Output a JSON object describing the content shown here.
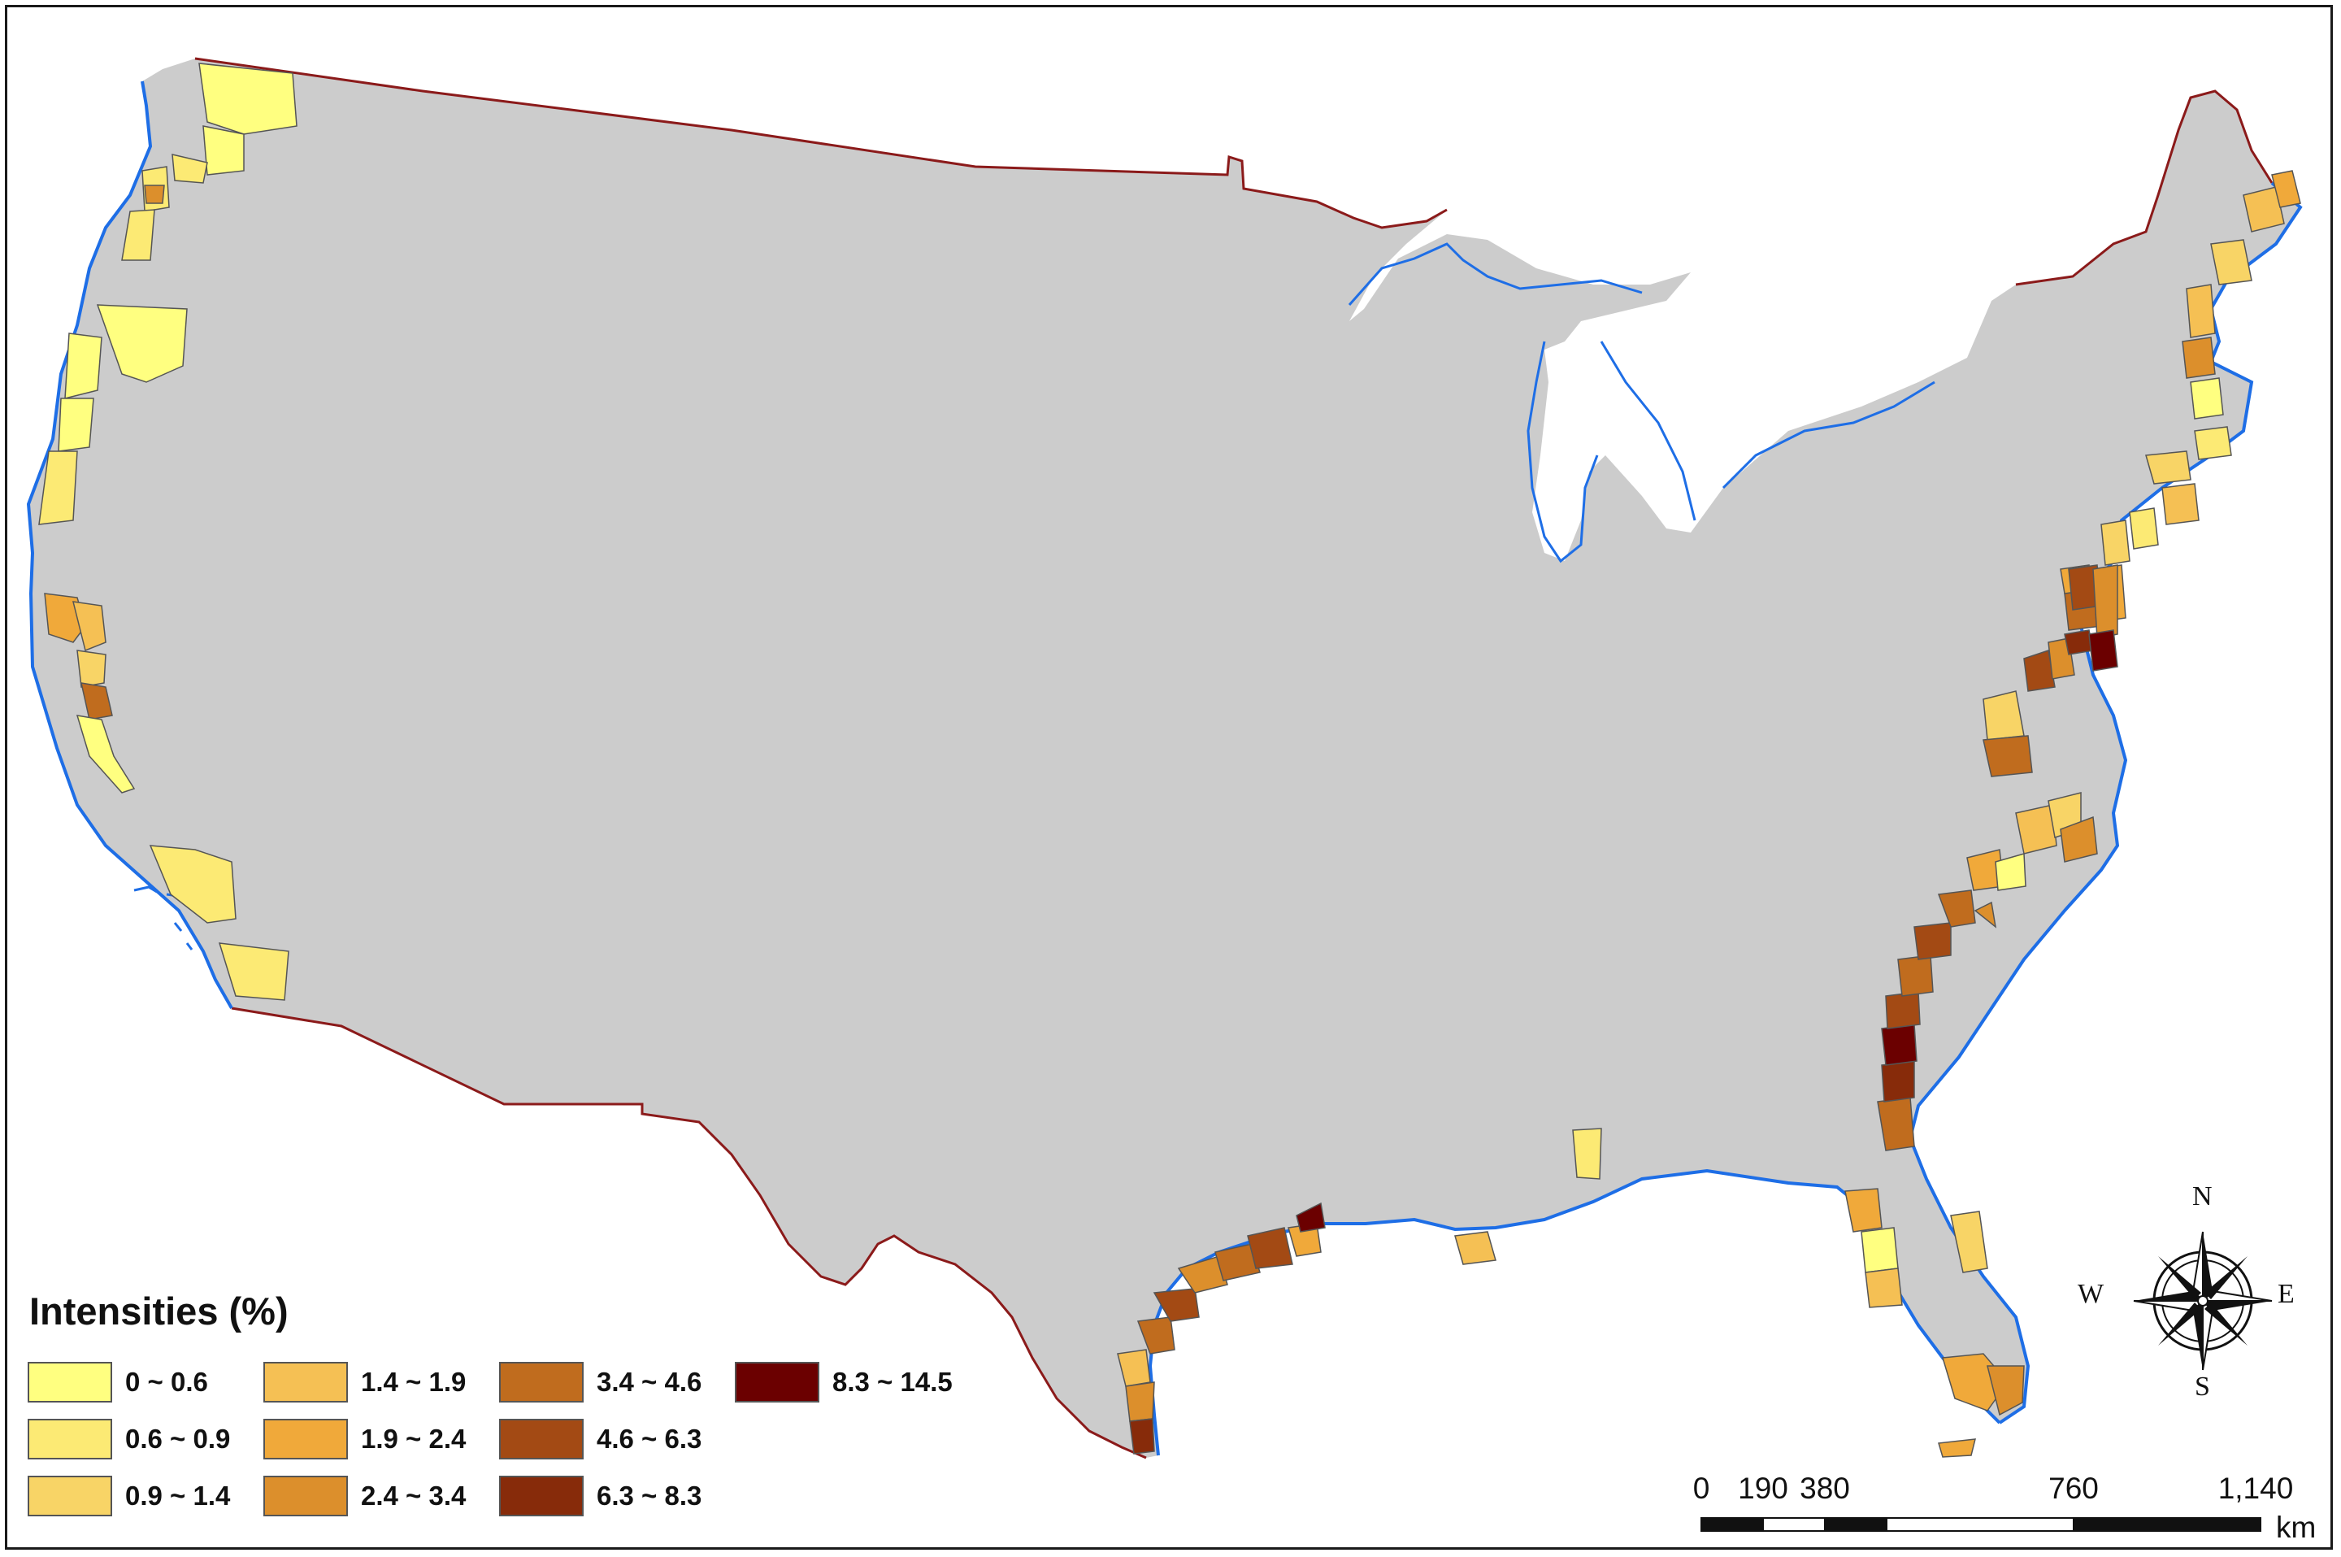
{
  "legend": {
    "title": "Intensities (%)",
    "classes": [
      {
        "label": "0 ~ 0.6",
        "color": "#ffff80"
      },
      {
        "label": "0.6 ~ 0.9",
        "color": "#fcea74"
      },
      {
        "label": "0.9 ~ 1.4",
        "color": "#f8d466"
      },
      {
        "label": "1.4 ~ 1.9",
        "color": "#f5c054"
      },
      {
        "label": "1.9 ~ 2.4",
        "color": "#f0a93a"
      },
      {
        "label": "2.4 ~ 3.4",
        "color": "#dc8f2c"
      },
      {
        "label": "3.4 ~ 4.6",
        "color": "#c06c1e"
      },
      {
        "label": "4.6 ~ 6.3",
        "color": "#a34a14"
      },
      {
        "label": "6.3 ~ 8.3",
        "color": "#872b0a"
      },
      {
        "label": "8.3 ~ 14.5",
        "color": "#6b0000"
      }
    ]
  },
  "compass": {
    "n": "N",
    "s": "S",
    "e": "E",
    "w": "W"
  },
  "scale_bar": {
    "ticks": [
      "0",
      "190",
      "380",
      "760",
      "1,140"
    ],
    "unit": "km"
  },
  "colors": {
    "land": "#cccccc",
    "coastline": "#1e6ee6",
    "border": "#8b1a1a"
  }
}
